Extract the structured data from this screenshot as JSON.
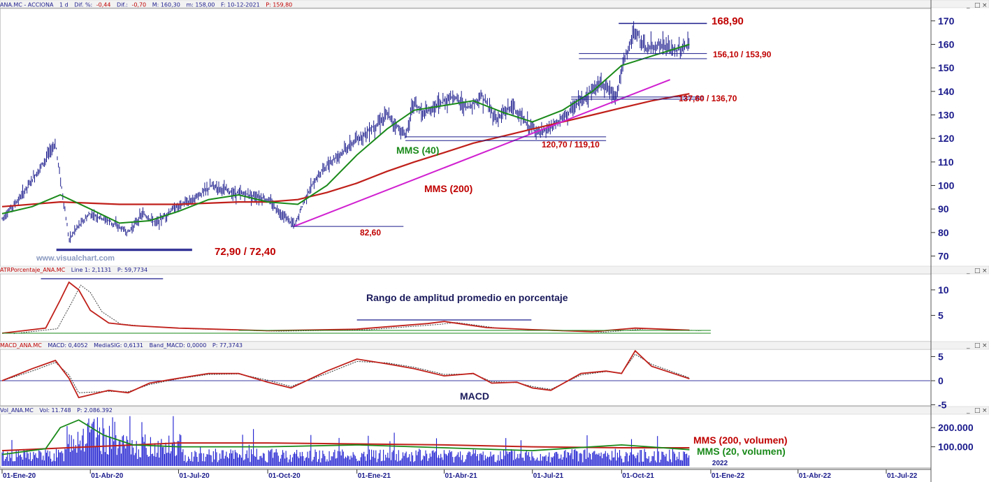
{
  "colors": {
    "axis_text": "#1a1a8c",
    "level_red": "#c00000",
    "sma200": "#c0201a",
    "sma40": "#1a8a1a",
    "trend_magenta": "#d020d0",
    "price_bars": "#1a1a8c",
    "hline_navy": "#1a1a8c"
  },
  "header": {
    "price": {
      "sym": "ANA.MC - ACCIONA",
      "tf": "1 d",
      "dif_pct_label": "Dif. %:",
      "dif_pct": "-0,44",
      "dif_label": "Dif.:",
      "dif": "-0,70",
      "max": "M: 160,30",
      "min": "m: 158,00",
      "date": "F: 10-12-2021",
      "close": "P: 159,80"
    },
    "atr": {
      "name": "ATRPorcentaje_ANA.MC",
      "line1": "Line 1: 2,1131",
      "p": "P: 59,7734"
    },
    "macd": {
      "name": "MACD_ANA.MC",
      "macd": "MACD: 0,4052",
      "sig": "MediaSIG: 0,6131",
      "band": "Band_MACD: 0,0000",
      "p": "P: 77,3743"
    },
    "vol": {
      "name": "Vol_ANA.MC",
      "vol": "Vol: 11.748",
      "p": "P: 2.086.392"
    }
  },
  "window_controls": [
    "_",
    "□",
    "×"
  ],
  "watermark": "www.visualchart.com",
  "labels": {
    "mms40": "MMS (40)",
    "mms200": "MMS (200)",
    "atr_title": "Rango de amplitud promedio en porcentaje",
    "macd": "MACD",
    "vol200": "MMS (200, volumen)",
    "vol20": "MMS (20, volumen)"
  },
  "levels": {
    "high": "168,90",
    "zone_top": "156,10 / 153,90",
    "zone_mid": "137,60 / 136,70",
    "zone_low": "120,70 / 119,10",
    "low_oct": "82,60",
    "low_mar": "72,90 / 72,40"
  },
  "chart_data": [
    {
      "type": "line",
      "title": "",
      "x_ticks": [
        "01-Ene-20",
        "01-Abr-20",
        "01-Jul-20",
        "01-Oct-20",
        "01-Ene-21",
        "01-Abr-21",
        "01-Jul-21",
        "01-Oct-21",
        "01-Ene-22",
        "01-Abr-22",
        "01-Jul-22"
      ],
      "x_extra_tick": "2022",
      "y_ticks": [
        70,
        80,
        90,
        100,
        110,
        120,
        130,
        140,
        150,
        160,
        170
      ],
      "ylim": [
        66,
        175
      ],
      "series": [
        {
          "name": "MMS (40)",
          "x": [
            "2020-01-01",
            "2020-02-01",
            "2020-03-01",
            "2020-04-01",
            "2020-05-01",
            "2020-06-01",
            "2020-07-01",
            "2020-08-01",
            "2020-09-01",
            "2020-10-01",
            "2020-11-01",
            "2020-12-01",
            "2021-01-01",
            "2021-02-01",
            "2021-03-01",
            "2021-04-01",
            "2021-05-01",
            "2021-06-01",
            "2021-07-01",
            "2021-08-01",
            "2021-09-01",
            "2021-10-01",
            "2021-11-01",
            "2021-12-10"
          ],
          "values": [
            88,
            91,
            96,
            90,
            84,
            85,
            89,
            94,
            96,
            93,
            92,
            100,
            113,
            124,
            132,
            134,
            136,
            131,
            127,
            132,
            140,
            151,
            155,
            160
          ]
        },
        {
          "name": "MMS (200)",
          "x": [
            "2020-01-01",
            "2020-03-01",
            "2020-05-01",
            "2020-07-01",
            "2020-09-01",
            "2020-10-01",
            "2020-11-01",
            "2020-12-01",
            "2021-01-01",
            "2021-02-01",
            "2021-03-01",
            "2021-04-01",
            "2021-05-01",
            "2021-06-01",
            "2021-07-01",
            "2021-08-01",
            "2021-09-01",
            "2021-10-01",
            "2021-11-01",
            "2021-12-10"
          ],
          "values": [
            91,
            93,
            92,
            92,
            93,
            93,
            94,
            97,
            101,
            106,
            110,
            114,
            118,
            121,
            124,
            127,
            130,
            133,
            136,
            139
          ]
        }
      ],
      "price_path": {
        "x": [
          "2020-01-01",
          "2020-01-20",
          "2020-02-10",
          "2020-02-25",
          "2020-03-10",
          "2020-03-18",
          "2020-04-01",
          "2020-04-20",
          "2020-05-10",
          "2020-05-25",
          "2020-06-08",
          "2020-06-25",
          "2020-07-15",
          "2020-08-05",
          "2020-08-25",
          "2020-09-15",
          "2020-10-01",
          "2020-10-15",
          "2020-10-29",
          "2020-11-10",
          "2020-11-25",
          "2020-12-10",
          "2020-12-28",
          "2021-01-15",
          "2021-02-01",
          "2021-02-20",
          "2021-03-01",
          "2021-03-10",
          "2021-03-25",
          "2021-04-10",
          "2021-04-25",
          "2021-05-10",
          "2021-05-25",
          "2021-06-10",
          "2021-06-25",
          "2021-07-10",
          "2021-07-25",
          "2021-08-10",
          "2021-08-25",
          "2021-09-10",
          "2021-09-25",
          "2021-10-05",
          "2021-10-15",
          "2021-10-25",
          "2021-11-10",
          "2021-11-25",
          "2021-12-10"
        ],
        "values": [
          86,
          95,
          108,
          118,
          77,
          82,
          88,
          85,
          80,
          88,
          84,
          90,
          94,
          100,
          97,
          96,
          94,
          88,
          83,
          96,
          106,
          112,
          118,
          124,
          130,
          121,
          136,
          130,
          134,
          138,
          133,
          138,
          128,
          134,
          126,
          122,
          126,
          132,
          138,
          144,
          138,
          155,
          166,
          158,
          160,
          157,
          159.8
        ]
      },
      "annotations": [
        "168,90",
        "156,10 / 153,90",
        "137,60 / 136,70",
        "120,70 / 119,10",
        "82,60",
        "72,90 / 72,40",
        "MMS (40)",
        "MMS (200)"
      ]
    },
    {
      "type": "line",
      "title": "Rango de amplitud promedio en porcentaje",
      "y_ticks": [
        5,
        10
      ],
      "ylim": [
        0,
        13
      ],
      "x": [
        "2020-01-01",
        "2020-02-15",
        "2020-03-01",
        "2020-03-10",
        "2020-03-20",
        "2020-04-01",
        "2020-04-20",
        "2020-05-15",
        "2020-07-01",
        "2020-10-01",
        "2021-01-01",
        "2021-03-15",
        "2021-04-01",
        "2021-05-15",
        "2021-07-01",
        "2021-09-01",
        "2021-10-15",
        "2021-12-10"
      ],
      "series": [
        {
          "name": "Line 1",
          "values": [
            1.5,
            2.5,
            8,
            11.5,
            10,
            6,
            3.5,
            3,
            2.5,
            2,
            2.3,
            3.4,
            3.8,
            2.6,
            2.2,
            1.8,
            2.5,
            2.1
          ]
        }
      ]
    },
    {
      "type": "line",
      "title": "MACD",
      "y_ticks": [
        -5,
        0,
        5
      ],
      "ylim": [
        -5,
        6
      ],
      "x": [
        "2020-01-01",
        "2020-02-01",
        "2020-02-25",
        "2020-03-10",
        "2020-03-20",
        "2020-04-20",
        "2020-05-10",
        "2020-06-01",
        "2020-07-01",
        "2020-08-01",
        "2020-09-01",
        "2020-10-01",
        "2020-10-25",
        "2020-12-01",
        "2021-01-01",
        "2021-02-01",
        "2021-03-01",
        "2021-04-01",
        "2021-05-01",
        "2021-05-20",
        "2021-06-15",
        "2021-07-01",
        "2021-07-20",
        "2021-08-20",
        "2021-09-15",
        "2021-10-01",
        "2021-10-15",
        "2021-11-01",
        "2021-12-10"
      ],
      "series": [
        {
          "name": "MACD",
          "values": [
            0,
            2.5,
            4.2,
            0.5,
            -3.5,
            -2,
            -2.5,
            -0.5,
            0.5,
            1.5,
            1.5,
            -0.3,
            -1.5,
            2,
            4.5,
            3.5,
            2.5,
            1,
            1.5,
            -0.5,
            -0.3,
            -1.5,
            -2.0,
            1.5,
            2.0,
            1.5,
            6.2,
            3,
            0.4
          ]
        },
        {
          "name": "MediaSIG",
          "values": [
            0,
            2,
            3.8,
            1.2,
            -2.5,
            -2.2,
            -2.3,
            -0.8,
            0.4,
            1.3,
            1.4,
            0.1,
            -1.2,
            1.5,
            4.0,
            3.7,
            2.8,
            1.3,
            1.4,
            -0.2,
            -0.4,
            -1.2,
            -1.8,
            1.2,
            1.9,
            1.6,
            5.5,
            3.4,
            0.6
          ]
        }
      ],
      "zero_line": 0
    },
    {
      "type": "bar",
      "title": "",
      "y_ticks": [
        "100.000",
        "200.000"
      ],
      "ylim": [
        0,
        270000
      ],
      "series": [
        {
          "name": "MMS (200, volumen)",
          "x": [
            "2020-01-01",
            "2020-04-01",
            "2020-07-01",
            "2020-10-01",
            "2021-01-01",
            "2021-04-01",
            "2021-07-01",
            "2021-10-01",
            "2021-12-10"
          ],
          "values": [
            80000,
            100000,
            120000,
            120000,
            115000,
            110000,
            100000,
            95000,
            95000
          ]
        },
        {
          "name": "MMS (20, volumen)",
          "x": [
            "2020-01-01",
            "2020-02-15",
            "2020-03-01",
            "2020-03-20",
            "2020-04-15",
            "2020-05-15",
            "2020-07-01",
            "2020-10-01",
            "2021-01-01",
            "2021-04-01",
            "2021-07-01",
            "2021-10-01",
            "2021-12-10"
          ],
          "values": [
            60000,
            90000,
            200000,
            240000,
            160000,
            110000,
            100000,
            100000,
            110000,
            95000,
            80000,
            110000,
            85000
          ]
        }
      ]
    }
  ]
}
